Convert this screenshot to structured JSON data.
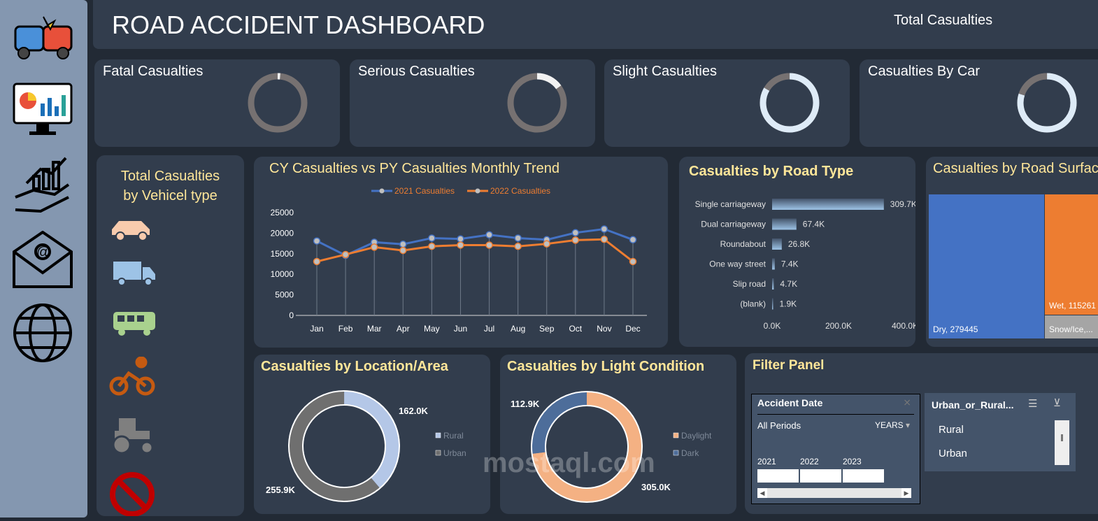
{
  "header": {
    "title": "ROAD ACCIDENT DASHBOARD",
    "total_label": "Total Casualties"
  },
  "sidebar": {
    "icons": [
      "car-crash-icon",
      "dashboard-monitor-icon",
      "growth-hand-icon",
      "email-icon",
      "globe-icon"
    ]
  },
  "kpis": [
    {
      "label": "Fatal Casualties",
      "share": 0.015
    },
    {
      "label": "Serious Casualties",
      "share": 0.15
    },
    {
      "label": "Slight Casualties",
      "share": 0.835
    },
    {
      "label": "Casualties By Car",
      "share": 0.8
    }
  ],
  "vehicle": {
    "title_line1": "Total Casualties",
    "title_line2": "by Vehicel type",
    "icons": [
      "car-icon",
      "truck-icon",
      "bus-icon",
      "bicycle-icon",
      "tractor-icon",
      "no-entry-icon"
    ]
  },
  "colors": {
    "accent_title": "#ffe699",
    "series_2021": "#4472c4",
    "series_2022": "#ed7d31",
    "dry": "#4472c4",
    "wet": "#ed7d31",
    "snow": "#a5a5a5"
  },
  "trend": {
    "title": "CY Casualties vs PY Casualties Monthly Trend"
  },
  "road_type": {
    "title": "Casualties by Road Type"
  },
  "surface": {
    "title": "Casualties by Road Surface"
  },
  "location": {
    "title": "Casualties by Location/Area"
  },
  "light": {
    "title": "Casualties by Light Condition"
  },
  "filter": {
    "title": "Filter Panel",
    "date_slicer": {
      "title": "Accident Date",
      "period": "All Periods",
      "level": "YEARS",
      "years": [
        "2021",
        "2022",
        "2023"
      ]
    },
    "area_slicer": {
      "title": "Urban_or_Rural...",
      "items": [
        "Rural",
        "Urban"
      ]
    }
  },
  "chart_data": [
    {
      "type": "line",
      "title": "CY Casualties vs PY Casualties Monthly Trend",
      "categories": [
        "Jan",
        "Feb",
        "Mar",
        "Apr",
        "May",
        "Jun",
        "Jul",
        "Aug",
        "Sep",
        "Oct",
        "Nov",
        "Dec"
      ],
      "ylim": [
        0,
        25000
      ],
      "yticks": [
        "25000",
        "20000",
        "15000",
        "10000",
        "5000",
        "0"
      ],
      "legend": "top",
      "series": [
        {
          "name": "2021 Casualties",
          "values": [
            18100,
            14600,
            17800,
            17300,
            18800,
            18600,
            19600,
            18800,
            18400,
            20100,
            21000,
            18400
          ]
        },
        {
          "name": "2022 Casualties",
          "values": [
            13100,
            14800,
            16600,
            15800,
            16800,
            17100,
            17100,
            16800,
            17400,
            18300,
            18500,
            13100
          ]
        }
      ]
    },
    {
      "type": "bar",
      "orientation": "horizontal",
      "title": "Casualties by Road Type",
      "categories": [
        "Single carriageway",
        "Dual carriageway",
        "Roundabout",
        "One way street",
        "Slip road",
        "(blank)"
      ],
      "values": [
        309700,
        67400,
        26800,
        7400,
        4700,
        1900
      ],
      "labels": [
        "309.7K",
        "67.4K",
        "26.8K",
        "7.4K",
        "4.7K",
        "1.9K"
      ],
      "xticks": [
        "0.0K",
        "200.0K",
        "400.0K"
      ],
      "xlim": [
        0,
        400000
      ]
    },
    {
      "type": "treemap",
      "title": "Casualties by Road Surface",
      "items": [
        {
          "label": "Dry, 279445",
          "value": 279445
        },
        {
          "label": "Wet, 115261",
          "value": 115261
        },
        {
          "label": "Snow/Ice,...",
          "value": 23000
        }
      ]
    },
    {
      "type": "pie",
      "donut": true,
      "title": "Casualties by Location/Area",
      "slices": [
        {
          "name": "Rural",
          "value": 162000,
          "label": "162.0K"
        },
        {
          "name": "Urban",
          "value": 255900,
          "label": "255.9K"
        }
      ]
    },
    {
      "type": "pie",
      "donut": true,
      "title": "Casualties by Light Condition",
      "slices": [
        {
          "name": "Daylight",
          "value": 305000,
          "label": "305.0K"
        },
        {
          "name": "Dark",
          "value": 112900,
          "label": "112.9K"
        }
      ]
    }
  ]
}
